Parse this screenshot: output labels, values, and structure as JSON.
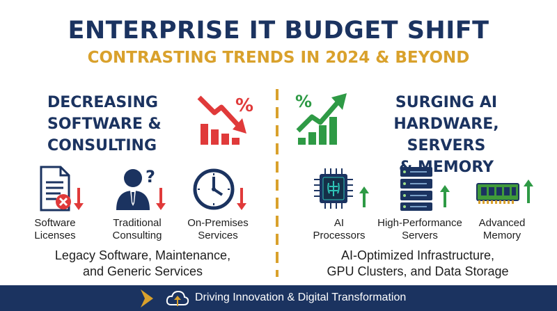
{
  "header": {
    "title": "ENTERPRISE IT BUDGET SHIFT",
    "subtitle": "CONTRASTING TRENDS IN 2024 & BEYOND"
  },
  "left": {
    "heading": [
      "DECREASING",
      "SOFTWARE &",
      "CONSULTING"
    ],
    "trend_symbol": "%",
    "items": [
      {
        "label": [
          "Software",
          "Licenses"
        ],
        "icon": "document-x-icon"
      },
      {
        "label": [
          "Traditional",
          "Consulting"
        ],
        "icon": "consultant-question-icon"
      },
      {
        "label": [
          "On-Premises",
          "Services"
        ],
        "icon": "clock-icon"
      }
    ],
    "summary": [
      "Legacy Software, Maintenance,",
      "and Generic Services"
    ]
  },
  "right": {
    "heading": [
      "SURGING AI",
      "HARDWARE, SERVERS",
      "& MEMORY"
    ],
    "trend_symbol": "%",
    "items": [
      {
        "label": [
          "AI",
          "Processors"
        ],
        "icon": "ai-chip-icon"
      },
      {
        "label": [
          "High-Performance",
          "Servers"
        ],
        "icon": "server-rack-icon"
      },
      {
        "label": [
          "Advanced",
          "Memory"
        ],
        "icon": "memory-module-icon"
      }
    ],
    "summary": [
      "AI-Optimized Infrastructure,",
      "GPU Clusters, and Data Storage"
    ]
  },
  "footer": {
    "text": "Driving Innovation & Digital Transformation"
  },
  "colors": {
    "navy": "#1b3360",
    "gold": "#d9a12c",
    "red": "#e03a3a",
    "green": "#2e9a45"
  }
}
